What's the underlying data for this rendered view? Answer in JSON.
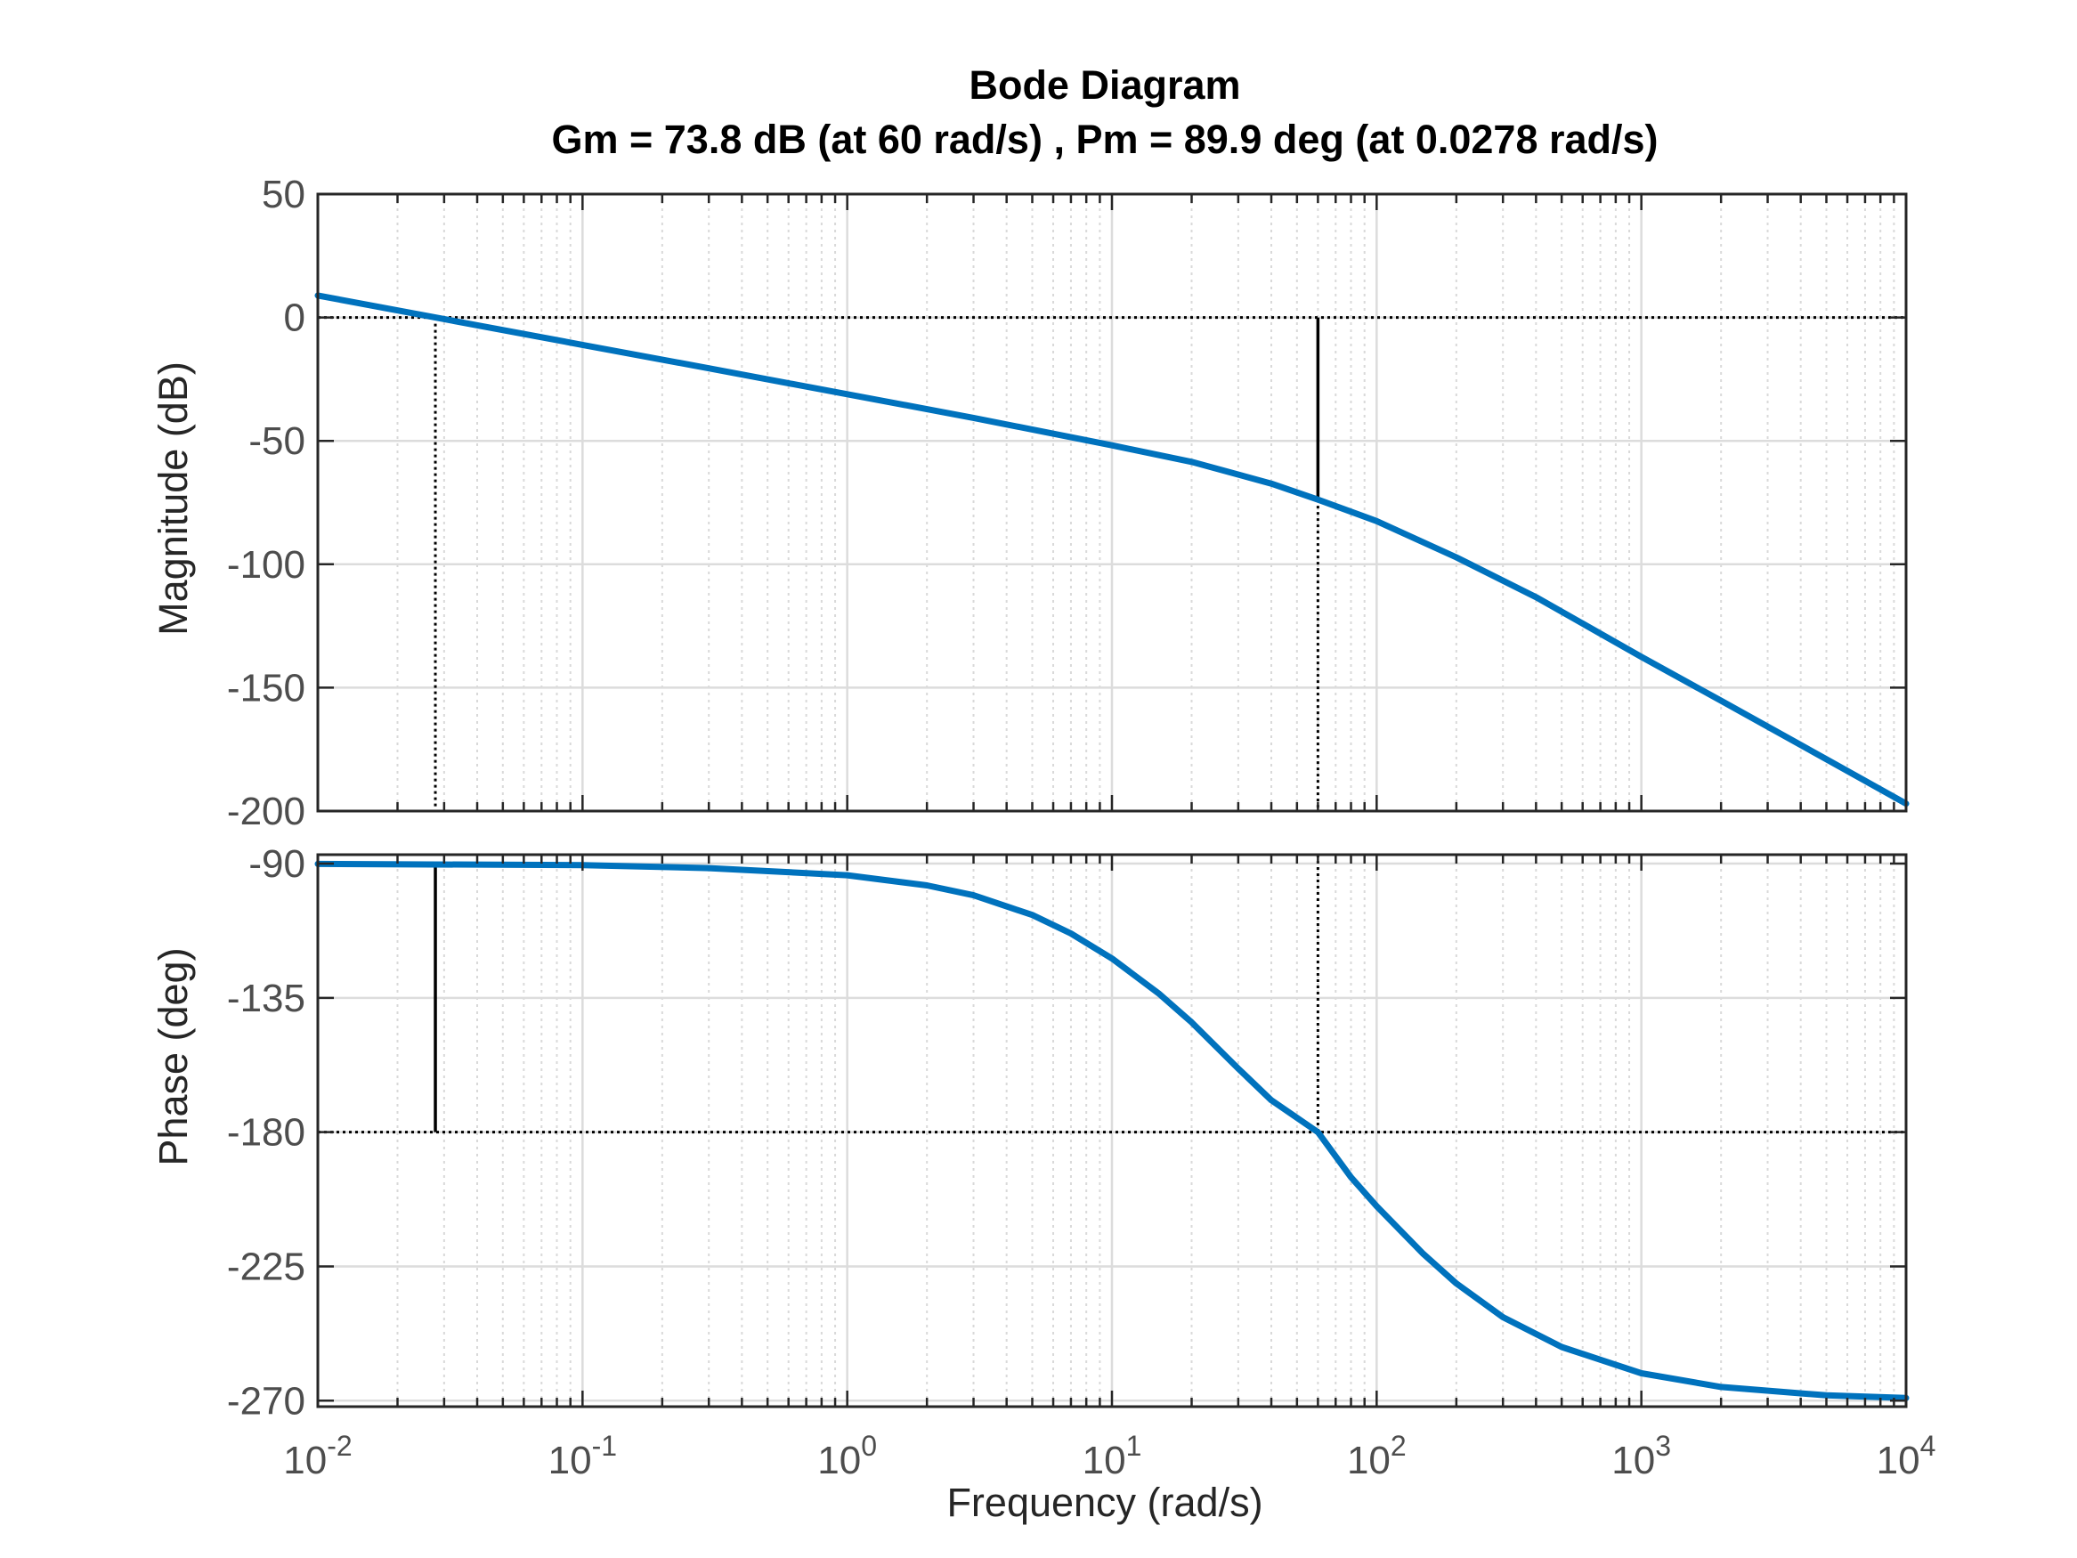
{
  "chart_data": {
    "type": "line",
    "title": "Bode Diagram",
    "subtitle": "Gm = 73.8 dB (at 60 rad/s) ,  Pm = 89.9 deg (at 0.0278 rad/s)",
    "xlabel": "Frequency  (rad/s)",
    "xscale": "log",
    "xlim": [
      0.01,
      10000
    ],
    "x_ticks": [
      {
        "base": "10",
        "exp": "-2"
      },
      {
        "base": "10",
        "exp": "-1"
      },
      {
        "base": "10",
        "exp": "0"
      },
      {
        "base": "10",
        "exp": "1"
      },
      {
        "base": "10",
        "exp": "2"
      },
      {
        "base": "10",
        "exp": "3"
      },
      {
        "base": "10",
        "exp": "4"
      }
    ],
    "grid": true,
    "line_color": "#0072BD",
    "margins": {
      "gain_margin_db": 73.8,
      "gain_crossover_freq": 60,
      "phase_margin_deg": 89.9,
      "phase_crossover_freq": 0.0278
    },
    "panels": [
      {
        "id": "magnitude",
        "ylabel": "Magnitude (dB)",
        "ylim": [
          -200,
          50
        ],
        "yticks": [
          50,
          0,
          -50,
          -100,
          -150,
          -200
        ],
        "ytick_labels": [
          "50",
          "0",
          "-50",
          "-100",
          "-150",
          "-200"
        ],
        "reference_line": 0,
        "series": [
          {
            "x": [
              0.01,
              0.0278,
              0.1,
              0.3,
              1,
              3,
              10,
              20,
              40,
              60,
              100,
              200,
              400,
              1000,
              2000,
              5000,
              10000
            ],
            "y": [
              8.9,
              0,
              -11.1,
              -20.6,
              -31.1,
              -40.7,
              -51.8,
              -58.5,
              -67.3,
              -73.8,
              -82.5,
              -97.2,
              -113.3,
              -137.5,
              -155.3,
              -179.0,
              -197.0
            ]
          }
        ]
      },
      {
        "id": "phase",
        "ylabel": "Phase (deg)",
        "ylim": [
          -272,
          -87
        ],
        "yticks": [
          -90,
          -135,
          -180,
          -225,
          -270
        ],
        "ytick_labels": [
          "-90",
          "-135",
          "-180",
          "-225",
          "-270"
        ],
        "reference_line": -180,
        "series": [
          {
            "x": [
              0.01,
              0.1,
              0.3,
              1,
              2,
              3,
              5,
              7,
              10,
              15,
              20,
              30,
              40,
              60,
              80,
              100,
              150,
              200,
              300,
              500,
              1000,
              2000,
              5000,
              10000
            ],
            "y": [
              -90.1,
              -90.5,
              -91.5,
              -93.9,
              -97.3,
              -100.6,
              -107.2,
              -113.4,
              -121.8,
              -133.5,
              -143.2,
              -158.7,
              -169.3,
              -180,
              -195.1,
              -204.8,
              -220.8,
              -230.7,
              -242.0,
              -252.0,
              -260.8,
              -265.4,
              -268.2,
              -269.1
            ]
          }
        ]
      }
    ]
  }
}
